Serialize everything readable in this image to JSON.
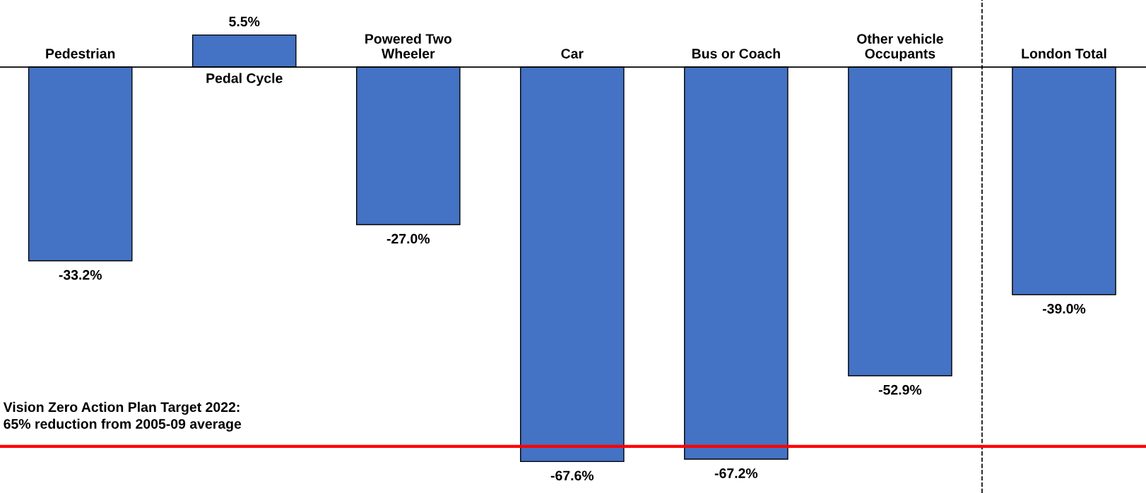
{
  "chart_data": {
    "type": "bar",
    "categories": [
      "Pedestrian",
      "Pedal Cycle",
      "Powered Two Wheeler",
      "Car",
      "Bus or Coach",
      "Other vehicle Occupants",
      "London Total"
    ],
    "values": [
      -33.2,
      5.5,
      -27.0,
      -67.6,
      -67.2,
      -52.9,
      -39.0
    ],
    "value_labels": [
      "-33.2%",
      "5.5%",
      "-27.0%",
      "-67.6%",
      "-67.2%",
      "-52.9%",
      "-39.0%"
    ],
    "color": "#4472c4",
    "ylim": [
      -73,
      11.5
    ],
    "annotations": [
      "Vision Zero Action Plan Target 2022:\n65% reduction from 2005-09 average"
    ],
    "ref_lines": [
      {
        "axis": "y",
        "value": -65,
        "color": "#ff0000",
        "line_style": "solid"
      }
    ]
  }
}
